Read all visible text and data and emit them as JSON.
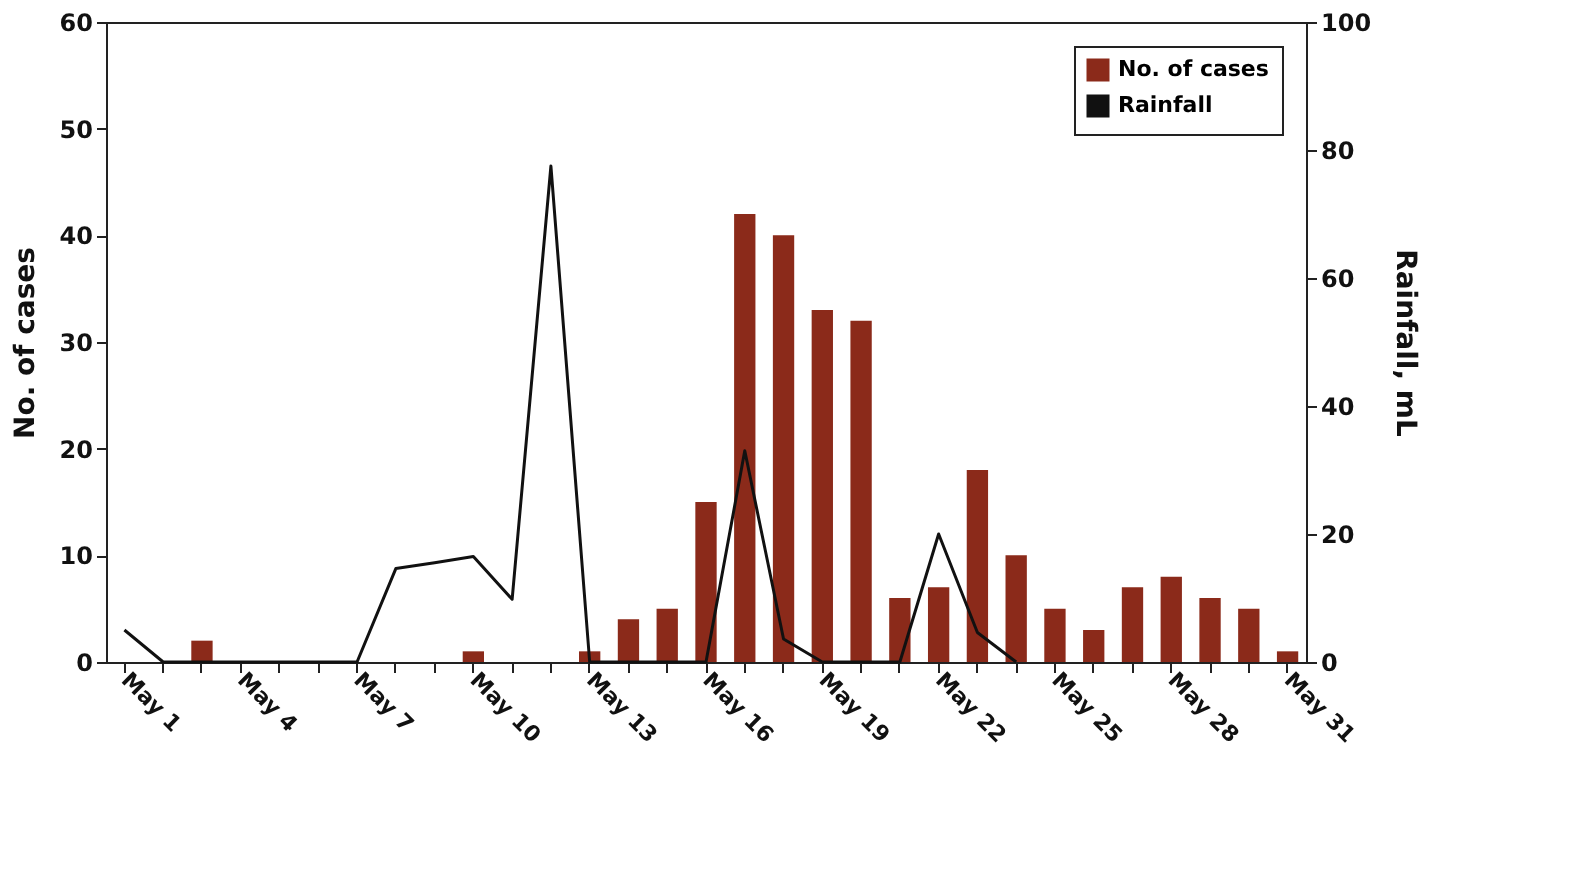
{
  "chart_data": {
    "type": "bar",
    "categories": [
      "May 1",
      null,
      null,
      "May 4",
      null,
      null,
      "May 7",
      null,
      null,
      "May 10",
      null,
      null,
      "May 13",
      null,
      null,
      "May 16",
      null,
      null,
      "May 19",
      null,
      null,
      "May 22",
      null,
      null,
      "May 25",
      null,
      null,
      "May 28",
      null,
      null,
      "May 31"
    ],
    "series": [
      {
        "name": "No. of cases",
        "color": "#8b2a1a",
        "values": [
          null,
          null,
          2,
          null,
          null,
          null,
          null,
          null,
          null,
          1,
          null,
          null,
          1,
          4,
          5,
          15,
          42,
          40,
          33,
          32,
          6,
          7,
          18,
          10,
          5,
          3,
          7,
          8,
          6,
          5,
          1
        ]
      },
      {
        "name": "Rainfall",
        "type": "line",
        "axis": "y2",
        "color": "#111111",
        "values": [
          5,
          0,
          0,
          0,
          0,
          0,
          0,
          14.6,
          15.5,
          16.5,
          9.8,
          77.5,
          0,
          0,
          0,
          0,
          33,
          3.6,
          0,
          0,
          0,
          20,
          4.6,
          0,
          null,
          null,
          null,
          null,
          null,
          null,
          null
        ]
      }
    ],
    "ylabel": "No. of cases",
    "y2label": "Rainfall, mL",
    "ylim": [
      0,
      60
    ],
    "yticks": [
      0,
      10,
      20,
      30,
      40,
      50,
      60
    ],
    "y2lim": [
      0,
      100
    ],
    "y2ticks": [
      0,
      20,
      40,
      60,
      80,
      100
    ],
    "legend": "top right",
    "grid": false
  }
}
